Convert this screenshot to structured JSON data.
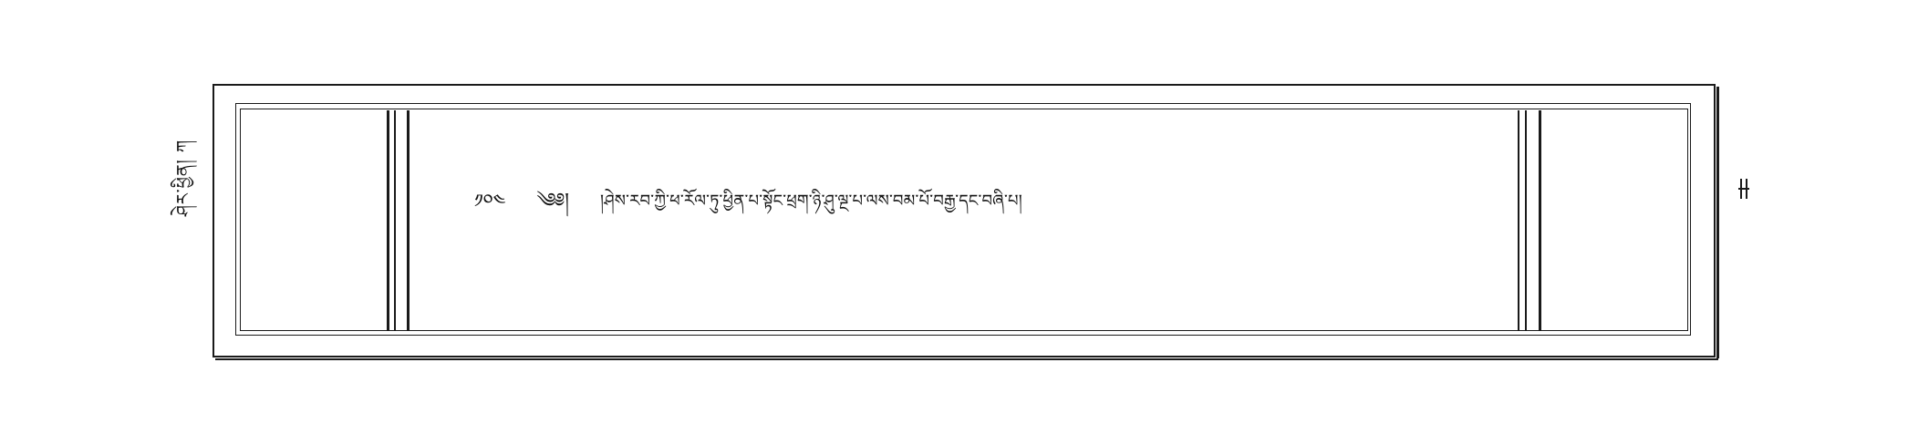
{
  "margin_left": {
    "label": "ཤེར་ཕྱིན། ཀ"
  },
  "text_line": {
    "folio_number": "༡༠༤",
    "invocation": "༄༅།",
    "body": "།ཤེས་རབ་ཀྱི་ཕ་རོལ་ཏུ་ཕྱིན་པ་སྟོང་ཕྲག་ཉི་ཤུ་ལྔ་པ་ལས་བམ་པོ་བརྒྱ་དང་བཞི་པ།"
  },
  "right_margin": {
    "mark": "།"
  }
}
